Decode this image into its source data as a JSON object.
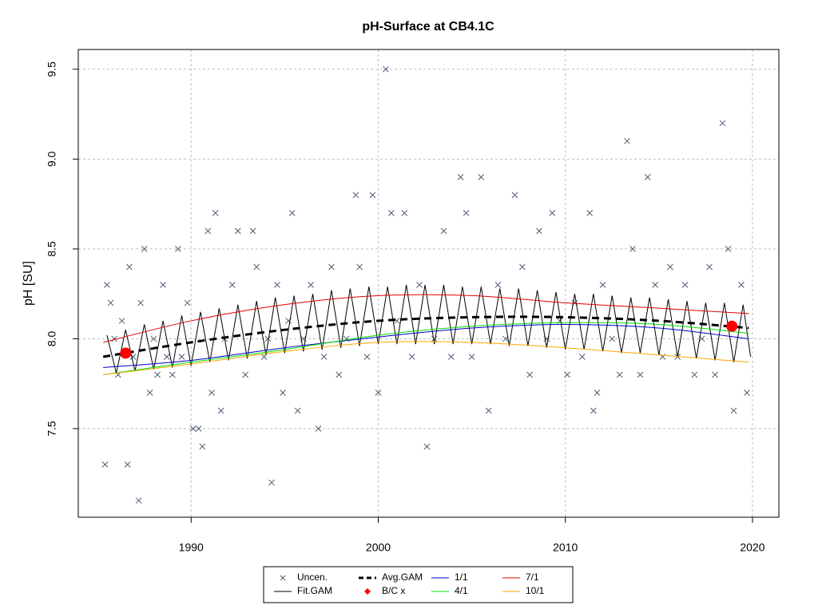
{
  "chart_data": {
    "type": "scatter",
    "title": "pH-Surface at CB4.1C",
    "y_label": "pH [SU]",
    "xlim": [
      1983.97,
      2021.41
    ],
    "xticks": [
      1990,
      2000,
      2010,
      2020
    ],
    "ylim": [
      7.007,
      9.61
    ],
    "yticks": [
      7.5,
      {
        "value": 8,
        "label": "8.0"
      },
      8.5,
      {
        "value": 9,
        "label": "9.0"
      },
      9.5
    ],
    "grid": true,
    "series": [
      {
        "name": "Uncen.",
        "type": "scatter",
        "color": "#4f5d73",
        "x": [
          1985.4,
          1985.5,
          1985.7,
          1985.9,
          1986.1,
          1986.3,
          1986.6,
          1986.7,
          1986.9,
          1987.2,
          1987.3,
          1987.5,
          1987.8,
          1988.0,
          1988.2,
          1988.5,
          1988.7,
          1989.0,
          1989.3,
          1989.5,
          1989.8,
          1990.1,
          1990.4,
          1990.6,
          1990.9,
          1991.1,
          1991.3,
          1991.6,
          1991.8,
          1992.2,
          1992.5,
          1992.9,
          1993.3,
          1993.5,
          1993.9,
          1994.1,
          1994.3,
          1994.6,
          1994.9,
          1995.2,
          1995.4,
          1995.7,
          1996.0,
          1996.4,
          1996.8,
          1997.1,
          1997.5,
          1997.9,
          1998.3,
          1998.8,
          1999.0,
          1999.4,
          1999.7,
          2000.0,
          2000.4,
          2000.7,
          2001.0,
          2001.4,
          2001.8,
          2002.2,
          2002.6,
          2003.0,
          2003.5,
          2003.9,
          2004.4,
          2004.7,
          2005.0,
          2005.5,
          2005.9,
          2006.4,
          2006.8,
          2007.3,
          2007.7,
          2008.1,
          2008.6,
          2009.0,
          2009.3,
          2009.7,
          2010.1,
          2010.5,
          2010.9,
          2011.3,
          2011.5,
          2011.7,
          2012.0,
          2012.5,
          2012.9,
          2013.3,
          2013.6,
          2014.0,
          2014.4,
          2014.8,
          2015.2,
          2015.6,
          2016.0,
          2016.4,
          2016.9,
          2017.3,
          2017.7,
          2018.0,
          2018.4,
          2018.7,
          2019.0,
          2019.4,
          2019.7
        ],
        "values": [
          7.3,
          8.3,
          8.2,
          8.0,
          7.8,
          8.1,
          7.3,
          8.4,
          7.9,
          7.1,
          8.2,
          8.5,
          7.7,
          8.0,
          7.8,
          8.3,
          7.9,
          7.8,
          8.5,
          7.9,
          8.2,
          7.5,
          7.5,
          7.4,
          8.6,
          7.7,
          8.7,
          7.6,
          8.0,
          8.3,
          8.6,
          7.8,
          8.6,
          8.4,
          7.9,
          8.0,
          7.2,
          8.3,
          7.7,
          8.1,
          8.7,
          7.6,
          8.0,
          8.3,
          7.5,
          7.9,
          8.4,
          7.8,
          8.0,
          8.8,
          8.4,
          7.9,
          8.8,
          7.7,
          9.5,
          8.7,
          8.1,
          8.7,
          7.9,
          8.3,
          7.4,
          8.0,
          8.6,
          7.9,
          8.9,
          8.7,
          7.9,
          8.9,
          7.6,
          8.3,
          8.0,
          8.8,
          8.4,
          7.8,
          8.6,
          8.0,
          8.7,
          8.1,
          7.8,
          8.2,
          7.9,
          8.7,
          7.6,
          7.7,
          8.3,
          8.0,
          7.8,
          9.1,
          8.5,
          7.8,
          8.9,
          8.3,
          7.9,
          8.4,
          7.9,
          8.3,
          7.8,
          8.0,
          8.4,
          7.8,
          9.2,
          8.5,
          7.6,
          8.3,
          7.7
        ]
      },
      {
        "name": "Fit.GAM",
        "type": "line",
        "color": "#000000",
        "x": [
          1985.5,
          1986,
          1986.5,
          1987,
          1987.5,
          1988,
          1988.5,
          1989,
          1989.5,
          1990,
          1990.5,
          1991,
          1991.5,
          1992,
          1992.5,
          1993,
          1993.5,
          1994,
          1994.5,
          1995,
          1995.5,
          1996,
          1996.5,
          1997,
          1997.5,
          1998,
          1998.5,
          1999,
          1999.5,
          2000,
          2000.5,
          2001,
          2001.5,
          2002,
          2002.5,
          2003,
          2003.5,
          2004,
          2004.5,
          2005,
          2005.5,
          2006,
          2006.5,
          2007,
          2007.5,
          2008,
          2008.5,
          2009,
          2009.5,
          2010,
          2010.5,
          2011,
          2011.5,
          2012,
          2012.5,
          2013,
          2013.5,
          2014,
          2014.5,
          2015,
          2015.5,
          2016,
          2016.5,
          2017,
          2017.5,
          2018,
          2018.5,
          2019,
          2019.5,
          2019.9
        ],
        "values": [
          8.02,
          7.81,
          8.05,
          7.82,
          8.08,
          7.83,
          8.1,
          7.84,
          8.13,
          7.85,
          8.15,
          7.87,
          8.17,
          7.88,
          8.19,
          7.89,
          8.21,
          7.91,
          8.23,
          7.92,
          8.24,
          7.93,
          8.25,
          7.94,
          8.27,
          7.95,
          8.28,
          7.96,
          8.29,
          7.97,
          8.29,
          7.97,
          8.3,
          7.97,
          8.3,
          7.97,
          8.3,
          7.97,
          8.29,
          7.97,
          8.29,
          7.97,
          8.28,
          7.96,
          8.28,
          7.96,
          8.27,
          7.95,
          8.26,
          7.94,
          8.25,
          7.94,
          8.25,
          7.93,
          8.24,
          7.92,
          8.23,
          7.92,
          8.23,
          7.91,
          8.22,
          7.9,
          8.21,
          7.89,
          8.2,
          7.88,
          8.2,
          7.87,
          8.19,
          7.9
        ]
      },
      {
        "name": "Avg.GAM",
        "type": "line",
        "dashed": true,
        "color": "#000000",
        "x": [
          1985.3,
          1990,
          1995,
          2000,
          2005,
          2010,
          2015,
          2019.8
        ],
        "values": [
          7.9,
          7.98,
          8.05,
          8.1,
          8.12,
          8.12,
          8.1,
          8.06
        ]
      },
      {
        "name": "B/C x",
        "type": "points",
        "color": "#ff0000",
        "x": [
          1986.5,
          2018.9
        ],
        "values": [
          7.92,
          8.07
        ]
      },
      {
        "name": "1/1",
        "type": "line",
        "color": "#0000cd",
        "x": [
          1985.3,
          1990,
          1995,
          2000,
          2005,
          2010,
          2015,
          2019.8
        ],
        "values": [
          7.84,
          7.88,
          7.95,
          8.01,
          8.06,
          8.08,
          8.06,
          8.0
        ]
      },
      {
        "name": "4/1",
        "type": "line",
        "color": "#00e000",
        "x": [
          1985.3,
          1990,
          1995,
          2000,
          2005,
          2010,
          2015,
          2019.8
        ],
        "values": [
          7.8,
          7.87,
          7.94,
          8.02,
          8.07,
          8.09,
          8.08,
          8.03
        ]
      },
      {
        "name": "7/1",
        "type": "line",
        "color": "#e00000",
        "x": [
          1985.3,
          1990,
          1995,
          2000,
          2005,
          2010,
          2015,
          2019.8
        ],
        "values": [
          7.98,
          8.1,
          8.19,
          8.24,
          8.24,
          8.2,
          8.17,
          8.14
        ]
      },
      {
        "name": "10/1",
        "type": "line",
        "color": "#ffa500",
        "x": [
          1985.3,
          1990,
          1995,
          2000,
          2005,
          2010,
          2015,
          2019.8
        ],
        "values": [
          7.8,
          7.86,
          7.93,
          7.98,
          7.98,
          7.95,
          7.91,
          7.87
        ]
      }
    ]
  }
}
